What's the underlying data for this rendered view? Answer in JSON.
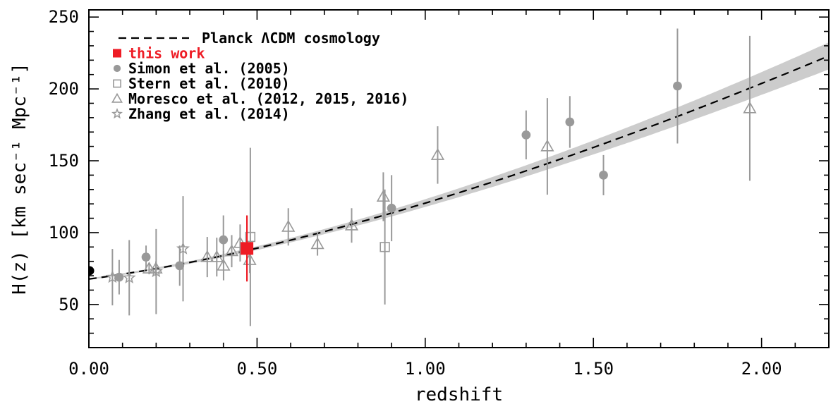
{
  "chart_data": {
    "type": "scatter",
    "xlabel": "redshift",
    "ylabel": "H(z) [km sec⁻¹ Mpc⁻¹]",
    "xlim": [
      0,
      2.2
    ],
    "ylim": [
      20,
      255
    ],
    "x_ticks": [
      {
        "value": 0.0,
        "label": "0.00"
      },
      {
        "value": 0.5,
        "label": "0.50"
      },
      {
        "value": 1.0,
        "label": "1.00"
      },
      {
        "value": 1.5,
        "label": "1.50"
      },
      {
        "value": 2.0,
        "label": "2.00"
      }
    ],
    "y_ticks": [
      {
        "value": 50,
        "label": "50"
      },
      {
        "value": 100,
        "label": "100"
      },
      {
        "value": 150,
        "label": "150"
      },
      {
        "value": 200,
        "label": "200"
      },
      {
        "value": 250,
        "label": "250"
      }
    ],
    "grid": false,
    "legend_position": "top-left",
    "model": {
      "name": "Planck ΛCDM cosmology",
      "H0": 67.7,
      "Om": 0.31,
      "band_fraction": 0.04,
      "line_color": "#000000",
      "band_color": "#cccccc"
    },
    "anchor_point": {
      "x": 0.0,
      "y": 73.5,
      "color": "#000000"
    },
    "series": [
      {
        "name": "this work",
        "marker": "filled-square",
        "color": "#ee1c25",
        "points": [
          {
            "x": 0.47,
            "y": 89,
            "err": 23
          }
        ]
      },
      {
        "name": "Simon et al. (2005)",
        "marker": "filled-circle",
        "color": "#999999",
        "points": [
          {
            "x": 0.09,
            "y": 69,
            "err": 12
          },
          {
            "x": 0.17,
            "y": 83,
            "err": 8
          },
          {
            "x": 0.27,
            "y": 77,
            "err": 14
          },
          {
            "x": 0.4,
            "y": 95,
            "err": 17
          },
          {
            "x": 0.9,
            "y": 117,
            "err": 23
          },
          {
            "x": 1.3,
            "y": 168,
            "err": 17
          },
          {
            "x": 1.43,
            "y": 177,
            "err": 18
          },
          {
            "x": 1.53,
            "y": 140,
            "err": 14
          },
          {
            "x": 1.75,
            "y": 202,
            "err": 40
          }
        ]
      },
      {
        "name": "Stern et al. (2010)",
        "marker": "open-square",
        "color": "#999999",
        "points": [
          {
            "x": 0.48,
            "y": 97,
            "err": 62
          },
          {
            "x": 0.88,
            "y": 90,
            "err": 40
          }
        ]
      },
      {
        "name": "Moresco et al. (2012, 2015, 2016)",
        "marker": "open-triangle",
        "color": "#999999",
        "points": [
          {
            "x": 0.1791,
            "y": 75,
            "err": 4
          },
          {
            "x": 0.1993,
            "y": 75,
            "err": 5
          },
          {
            "x": 0.3519,
            "y": 83,
            "err": 14
          },
          {
            "x": 0.3802,
            "y": 83,
            "err": 13.5
          },
          {
            "x": 0.4004,
            "y": 77,
            "err": 10.2
          },
          {
            "x": 0.4247,
            "y": 87.1,
            "err": 11.2
          },
          {
            "x": 0.4497,
            "y": 92.8,
            "err": 12.9
          },
          {
            "x": 0.4783,
            "y": 80.9,
            "err": 9
          },
          {
            "x": 0.5929,
            "y": 104,
            "err": 13
          },
          {
            "x": 0.6797,
            "y": 92,
            "err": 8
          },
          {
            "x": 0.7812,
            "y": 105,
            "err": 12
          },
          {
            "x": 0.8754,
            "y": 125,
            "err": 17
          },
          {
            "x": 1.037,
            "y": 154,
            "err": 20
          },
          {
            "x": 1.363,
            "y": 160,
            "err": 33.6
          },
          {
            "x": 1.965,
            "y": 186.5,
            "err": 50.4
          }
        ]
      },
      {
        "name": "Zhang et al. (2014)",
        "marker": "open-star",
        "color": "#999999",
        "points": [
          {
            "x": 0.07,
            "y": 69,
            "err": 19.6
          },
          {
            "x": 0.12,
            "y": 68.6,
            "err": 26.2
          },
          {
            "x": 0.2,
            "y": 72.9,
            "err": 29.6
          },
          {
            "x": 0.28,
            "y": 88.8,
            "err": 36.6
          }
        ]
      }
    ]
  }
}
